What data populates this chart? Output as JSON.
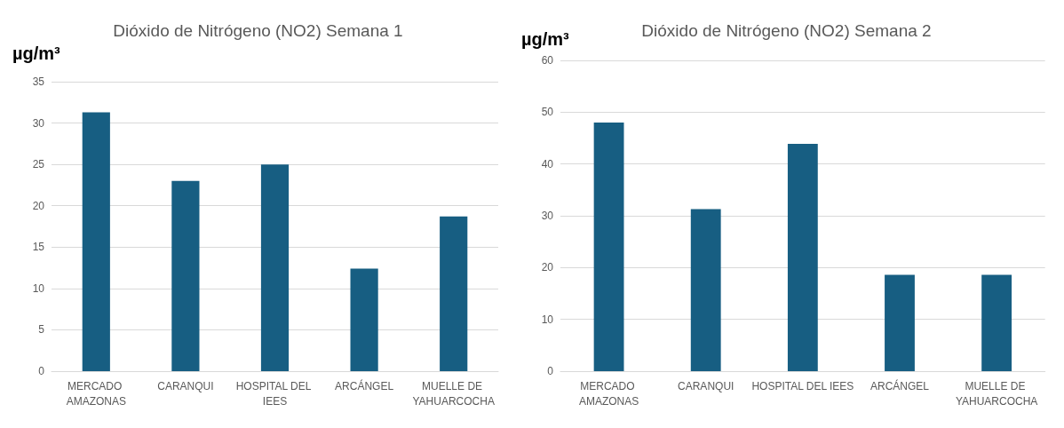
{
  "chart_data": [
    {
      "type": "bar",
      "title": "Dióxido de Nitrógeno (NO2) Semana 1",
      "ylabel": "µg/m³",
      "categories": [
        "MERCADO AMAZONAS",
        "CARANQUI",
        "HOSPITAL DEL IEES",
        "ARCÁNGEL",
        "MUELLE DE YAHUARCOCHA"
      ],
      "values": [
        31.3,
        23.0,
        25.0,
        12.4,
        18.7
      ],
      "color": "#175e82",
      "ylim": [
        0,
        35
      ],
      "yticks": [
        0,
        5,
        10,
        15,
        20,
        25,
        30,
        35
      ],
      "grid": "y"
    },
    {
      "type": "bar",
      "title": "Dióxido de Nitrógeno (NO2) Semana 2",
      "ylabel": "µg/m³",
      "categories": [
        "MERCADO AMAZONAS",
        "CARANQUI",
        "HOSPITAL DEL IEES",
        "ARCÁNGEL",
        "MUELLE DE YAHUARCOCHA"
      ],
      "values": [
        48.0,
        31.3,
        43.9,
        18.6,
        18.6
      ],
      "color": "#175e82",
      "ylim": [
        0,
        60
      ],
      "yticks": [
        0,
        10,
        20,
        30,
        40,
        50,
        60
      ],
      "grid": "y"
    }
  ]
}
